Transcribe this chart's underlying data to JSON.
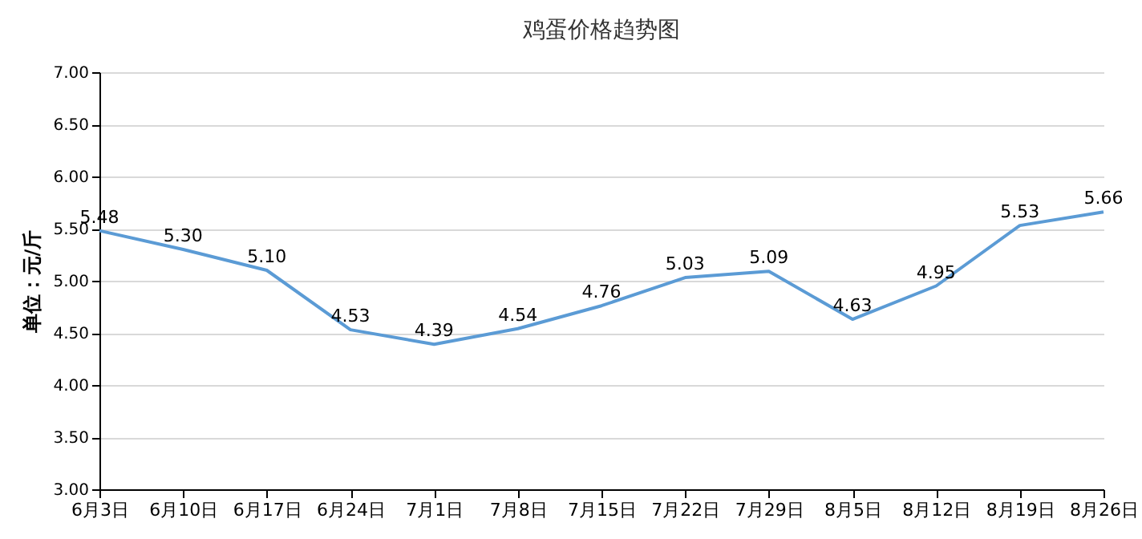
{
  "chart_data": {
    "type": "line",
    "title": "鸡蛋价格趋势图",
    "ylabel": "单位：元/斤",
    "categories": [
      "6月3日",
      "6月10日",
      "6月17日",
      "6月24日",
      "7月1日",
      "7月8日",
      "7月15日",
      "7月22日",
      "7月29日",
      "8月5日",
      "8月12日",
      "8月19日",
      "8月26日"
    ],
    "series": [
      {
        "color": "#5b9bd5",
        "values": [
          5.48,
          5.3,
          5.1,
          4.53,
          4.39,
          4.54,
          4.76,
          5.03,
          5.09,
          4.63,
          4.95,
          5.53,
          5.66
        ],
        "value_labels": [
          "5.48",
          "5.30",
          "5.10",
          "4.53",
          "4.39",
          "4.54",
          "4.76",
          "5.03",
          "5.09",
          "4.63",
          "4.95",
          "5.53",
          "5.66"
        ]
      }
    ],
    "ylim": [
      3,
      7
    ],
    "yticks": [
      {
        "value": 3,
        "label": "3.00"
      },
      {
        "value": 3.5,
        "label": "3.50"
      },
      {
        "value": 4,
        "label": "4.00"
      },
      {
        "value": 4.5,
        "label": "4.50"
      },
      {
        "value": 5,
        "label": "5.00"
      },
      {
        "value": 5.5,
        "label": "5.50"
      },
      {
        "value": 6,
        "label": "6.00"
      },
      {
        "value": 6.5,
        "label": "6.50"
      },
      {
        "value": 7,
        "label": "7.00"
      }
    ],
    "grid": "y",
    "marker": "none",
    "line_style": "solid"
  }
}
